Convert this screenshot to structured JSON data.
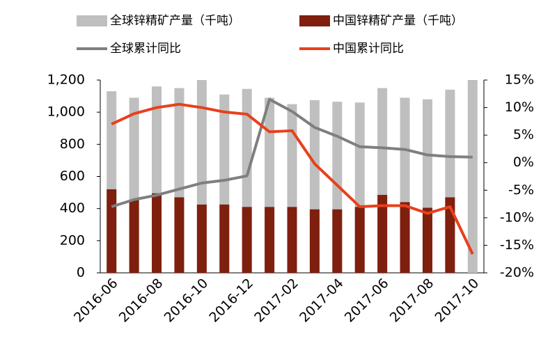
{
  "chart_data": {
    "type": "bar",
    "categories": [
      "2016-06",
      null,
      "2016-08",
      null,
      "2016-10",
      null,
      "2016-12",
      null,
      "2017-02",
      null,
      "2017-04",
      null,
      "2017-06",
      null,
      "2017-08",
      null,
      "2017-10"
    ],
    "series": [
      {
        "name": "全球锌精矿产量（千吨）",
        "type": "bar",
        "color": "#bfbfbf",
        "values": [
          1130,
          1090,
          1160,
          1150,
          1200,
          1110,
          1145,
          1090,
          1050,
          1075,
          1065,
          1060,
          1150,
          1090,
          1080,
          1140,
          1200
        ]
      },
      {
        "name": "中国锌精矿产量（千吨）",
        "type": "bar",
        "color": "#7f1f0e",
        "values": [
          520,
          455,
          495,
          470,
          425,
          425,
          410,
          410,
          410,
          395,
          395,
          410,
          485,
          440,
          405,
          470,
          null
        ]
      },
      {
        "name": "全球累计同比",
        "type": "line",
        "axis": "y2",
        "color": "#7f7f7f",
        "values": [
          -8.0,
          -6.7,
          -5.9,
          -4.8,
          -3.7,
          -3.2,
          -2.4,
          11.5,
          9.3,
          6.4,
          4.8,
          2.9,
          2.7,
          2.4,
          1.4,
          1.1,
          1.0
        ]
      },
      {
        "name": "中国累计同比",
        "type": "line",
        "axis": "y2",
        "color": "#e8401c",
        "values": [
          7.0,
          8.9,
          10.0,
          10.6,
          10.0,
          9.2,
          8.8,
          5.6,
          5.8,
          -0.2,
          -4.1,
          -8.0,
          -7.8,
          -7.8,
          -9.2,
          -8.0,
          -16.6
        ]
      }
    ],
    "ylim": [
      0,
      1200
    ],
    "yticks": [
      0,
      200,
      400,
      600,
      800,
      {
        "value": 1000,
        "label": "1,000"
      },
      {
        "value": 1200,
        "label": "1,200"
      }
    ],
    "y2lim": [
      -20,
      15
    ],
    "y2ticks": [
      {
        "value": -20,
        "label": "-20%"
      },
      {
        "value": -15,
        "label": "-15%"
      },
      {
        "value": -10,
        "label": "-10%"
      },
      {
        "value": -5,
        "label": "-5%"
      },
      {
        "value": 0,
        "label": "0%"
      },
      {
        "value": 5,
        "label": "5%"
      },
      {
        "value": 10,
        "label": "10%"
      },
      {
        "value": 15,
        "label": "15%"
      }
    ]
  }
}
